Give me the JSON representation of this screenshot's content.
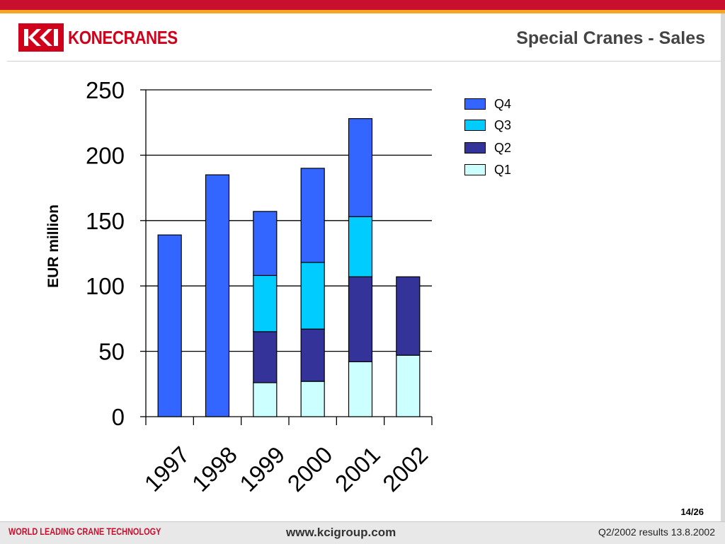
{
  "header": {
    "logo_text": "KONECRANES",
    "title": "Special Cranes - Sales"
  },
  "footer": {
    "tagline": "WORLD LEADING CRANE TECHNOLOGY",
    "website": "www.kcigroup.com",
    "results": "Q2/2002 results 13.8.2002",
    "page": "14/26"
  },
  "colors": {
    "brand_red": "#d0021b",
    "q1": "#ccffff",
    "q2": "#333399",
    "q3": "#00ccff",
    "q4": "#3366ff"
  },
  "chart_data": {
    "type": "bar",
    "stacked": true,
    "title": "",
    "xlabel": "",
    "ylabel": "EUR million",
    "ylim": [
      0,
      250
    ],
    "yticks": [
      0,
      50,
      100,
      150,
      200,
      250
    ],
    "grid": true,
    "legend_position": "right",
    "categories": [
      "1997",
      "1998",
      "1999",
      "2000",
      "2001",
      "2002"
    ],
    "series": [
      {
        "name": "Q1",
        "color": "#ccffff",
        "values": [
          0,
          0,
          26,
          27,
          42,
          47
        ]
      },
      {
        "name": "Q2",
        "color": "#333399",
        "values": [
          0,
          0,
          39,
          40,
          65,
          60
        ]
      },
      {
        "name": "Q3",
        "color": "#00ccff",
        "values": [
          0,
          0,
          43,
          51,
          46,
          0
        ]
      },
      {
        "name": "Q4",
        "color": "#3366ff",
        "values": [
          139,
          185,
          49,
          72,
          75,
          0
        ]
      }
    ],
    "legend_order": [
      "Q4",
      "Q3",
      "Q2",
      "Q1"
    ]
  }
}
